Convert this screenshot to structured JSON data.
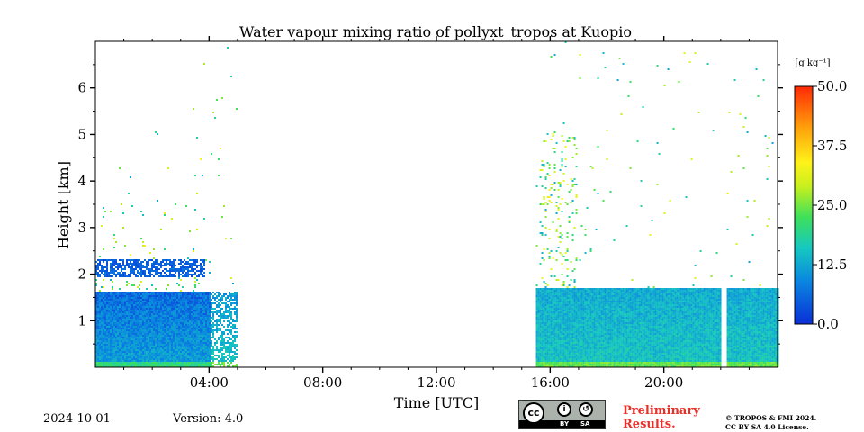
{
  "chart_data": {
    "type": "heatmap",
    "title": "Water vapour mixing ratio of pollyxt_tropos at Kuopio",
    "xlabel": "Time [UTC]",
    "ylabel": "Height [km]",
    "xlim": [
      0,
      24
    ],
    "ylim": [
      0,
      7
    ],
    "x_ticks": [
      {
        "value": 4,
        "label": "04:00"
      },
      {
        "value": 8,
        "label": "08:00"
      },
      {
        "value": 12,
        "label": "12:00"
      },
      {
        "value": 16,
        "label": "16:00"
      },
      {
        "value": 20,
        "label": "20:00"
      }
    ],
    "y_ticks": [
      {
        "value": 1,
        "label": "1"
      },
      {
        "value": 2,
        "label": "2"
      },
      {
        "value": 3,
        "label": "3"
      },
      {
        "value": 4,
        "label": "4"
      },
      {
        "value": 5,
        "label": "5"
      },
      {
        "value": 6,
        "label": "6"
      }
    ],
    "colorbar": {
      "unit": "[g kg⁻¹]",
      "range": [
        0,
        50
      ],
      "ticks": [
        {
          "value": 0,
          "label": "0.0"
        },
        {
          "value": 12.5,
          "label": "12.5"
        },
        {
          "value": 25,
          "label": "25.0"
        },
        {
          "value": 37.5,
          "label": "37.5"
        },
        {
          "value": 50,
          "label": "50.0"
        }
      ],
      "colors": [
        "#0a2fd6",
        "#0a86e0",
        "#16c8c0",
        "#3fe05a",
        "#c8f01e",
        "#fff21a",
        "#ffa40c",
        "#ff2a06"
      ]
    },
    "periods": [
      {
        "start": 0,
        "end": 5,
        "top_km": 1.6,
        "values": {
          "near_surface": 10,
          "mid": 5,
          "layer_2km": 4
        }
      },
      {
        "start": 15.5,
        "end": 24,
        "top_km": 1.7,
        "values": {
          "near_surface": 14,
          "mid": 11
        }
      }
    ],
    "gaps": [
      {
        "start": 22.0,
        "end": 22.2
      }
    ]
  },
  "footer": {
    "date": "2024-10-01",
    "version": "Version: 4.0",
    "license_badge": {
      "cc": "cc",
      "by": "BY",
      "sa": "SA"
    },
    "preliminary": [
      "Preliminary",
      "Results."
    ],
    "copyright": [
      "© TROPOS & FMI 2024.",
      "CC BY SA 4.0 License."
    ]
  }
}
